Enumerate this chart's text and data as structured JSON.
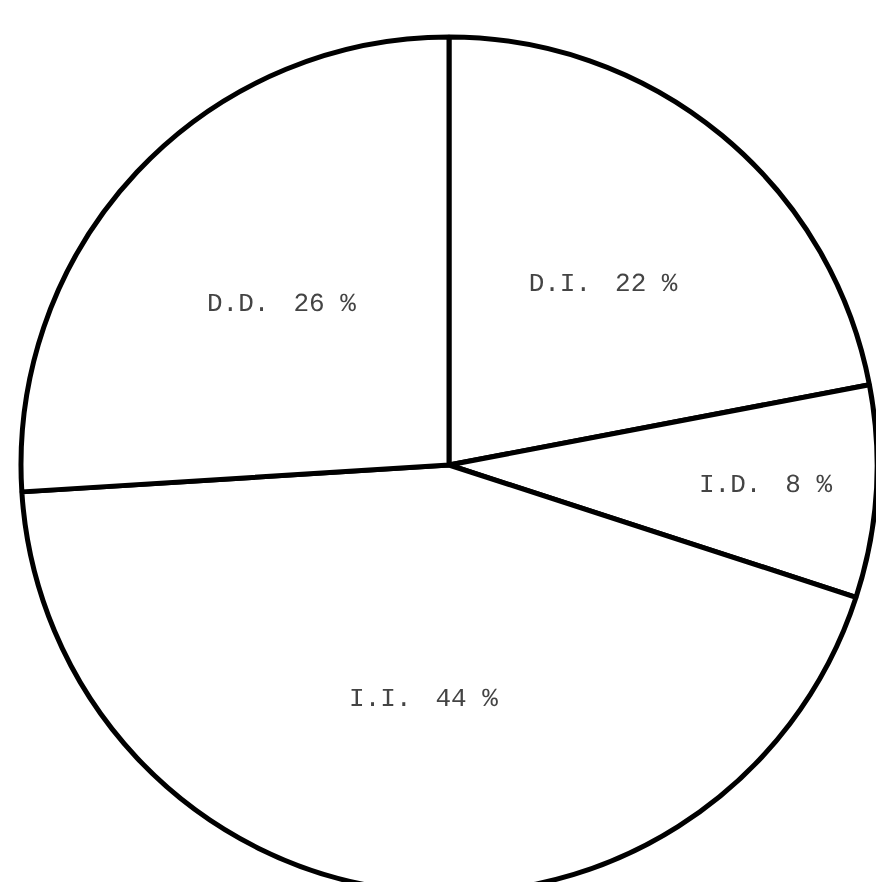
{
  "chart_data": {
    "type": "pie",
    "categories": [
      "D.I.",
      "I.D.",
      "I.I.",
      "D.D."
    ],
    "values": [
      22,
      8,
      44,
      26
    ],
    "value_labels": [
      "22 %",
      "8 %",
      "44 %",
      "26 %"
    ],
    "colors": [
      "#ffffff",
      "#ffffff",
      "#ffffff",
      "#ffffff"
    ]
  }
}
